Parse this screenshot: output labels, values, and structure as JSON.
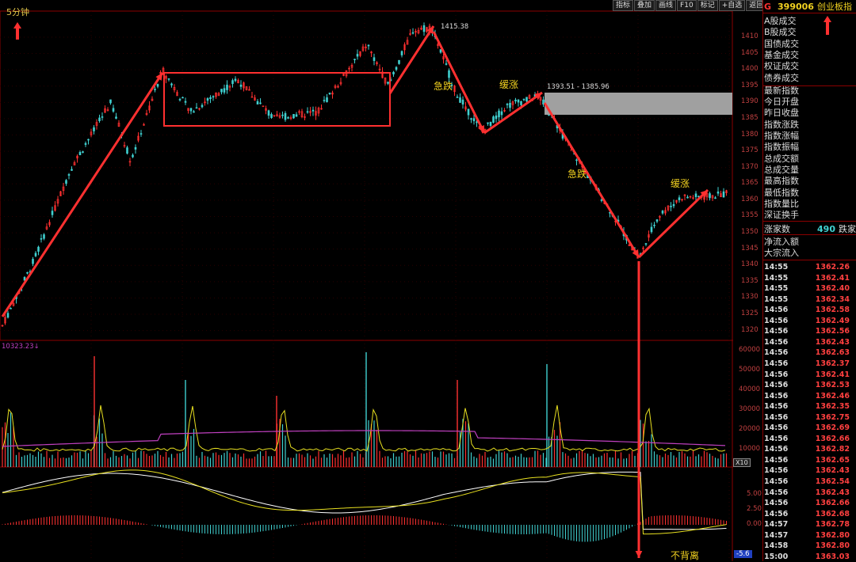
{
  "period_label": "5分钟",
  "toolbar": [
    "指标",
    "叠加",
    "画线",
    "F10",
    "标记",
    "+自选",
    "返回"
  ],
  "instrument": {
    "prefix": "G",
    "code": "399006",
    "name": "创业板指"
  },
  "price_axis": {
    "ticks": [
      1410,
      1405,
      1400,
      1395,
      1390,
      1385,
      1380,
      1375,
      1370,
      1365,
      1360,
      1355,
      1350,
      1345,
      1340,
      1335,
      1330,
      1325,
      1320
    ],
    "min": 1317,
    "max": 1418
  },
  "volume_axis": {
    "ticks": [
      "60000",
      "50000",
      "40000",
      "30000",
      "20000",
      "10000"
    ],
    "multiplier": "X10"
  },
  "volume_readout": "10323.23↓",
  "macd_axis": {
    "ticks": [
      "5.00",
      "2.50",
      "0.00"
    ],
    "current": "-5.6"
  },
  "annotations": {
    "high_label": "1415.38",
    "range_label": "1393.51 - 1385.96",
    "sharp_drop_1": "急跌",
    "slow_rise_1": "缓涨",
    "sharp_drop_2": "急跌",
    "slow_rise_2": "缓涨",
    "no_divergence": "不背离"
  },
  "menu": [
    "A股成交",
    "B股成交",
    "国债成交",
    "基金成交",
    "权证成交",
    "债券成交",
    "最新指数",
    "今日开盘",
    "昨日收盘",
    "指数涨跌",
    "指数涨幅",
    "指数振幅",
    "总成交额",
    "总成交量",
    "最高指数",
    "最低指数",
    "指数量比",
    "深证换手"
  ],
  "rise_count_label": "涨家数",
  "fall_count": "490",
  "fall_count_label": "跌家",
  "flow": [
    "净流入额",
    "大宗流入"
  ],
  "ticks": [
    {
      "time": "14:55",
      "price": "1362.26"
    },
    {
      "time": "14:55",
      "price": "1362.41"
    },
    {
      "time": "14:55",
      "price": "1362.40"
    },
    {
      "time": "14:55",
      "price": "1362.34"
    },
    {
      "time": "14:56",
      "price": "1362.58"
    },
    {
      "time": "14:56",
      "price": "1362.49"
    },
    {
      "time": "14:56",
      "price": "1362.56"
    },
    {
      "time": "14:56",
      "price": "1362.43"
    },
    {
      "time": "14:56",
      "price": "1362.63"
    },
    {
      "time": "14:56",
      "price": "1362.37"
    },
    {
      "time": "14:56",
      "price": "1362.41"
    },
    {
      "time": "14:56",
      "price": "1362.53"
    },
    {
      "time": "14:56",
      "price": "1362.46"
    },
    {
      "time": "14:56",
      "price": "1362.35"
    },
    {
      "time": "14:56",
      "price": "1362.75"
    },
    {
      "time": "14:56",
      "price": "1362.69"
    },
    {
      "time": "14:56",
      "price": "1362.66"
    },
    {
      "time": "14:56",
      "price": "1362.82"
    },
    {
      "time": "14:56",
      "price": "1362.65"
    },
    {
      "time": "14:56",
      "price": "1362.43"
    },
    {
      "time": "14:56",
      "price": "1362.54"
    },
    {
      "time": "14:56",
      "price": "1362.43"
    },
    {
      "time": "14:56",
      "price": "1362.66"
    },
    {
      "time": "14:56",
      "price": "1362.68"
    },
    {
      "time": "14:57",
      "price": "1362.78"
    },
    {
      "time": "14:57",
      "price": "1362.80"
    },
    {
      "time": "14:58",
      "price": "1362.80"
    },
    {
      "time": "15:00",
      "price": "1363.03"
    }
  ],
  "colors": {
    "up": "#ff3030",
    "down": "#40d0d0",
    "arrow": "#ff3030",
    "ma_yellow": "#e8e020",
    "ma_purple": "#c040c0"
  }
}
